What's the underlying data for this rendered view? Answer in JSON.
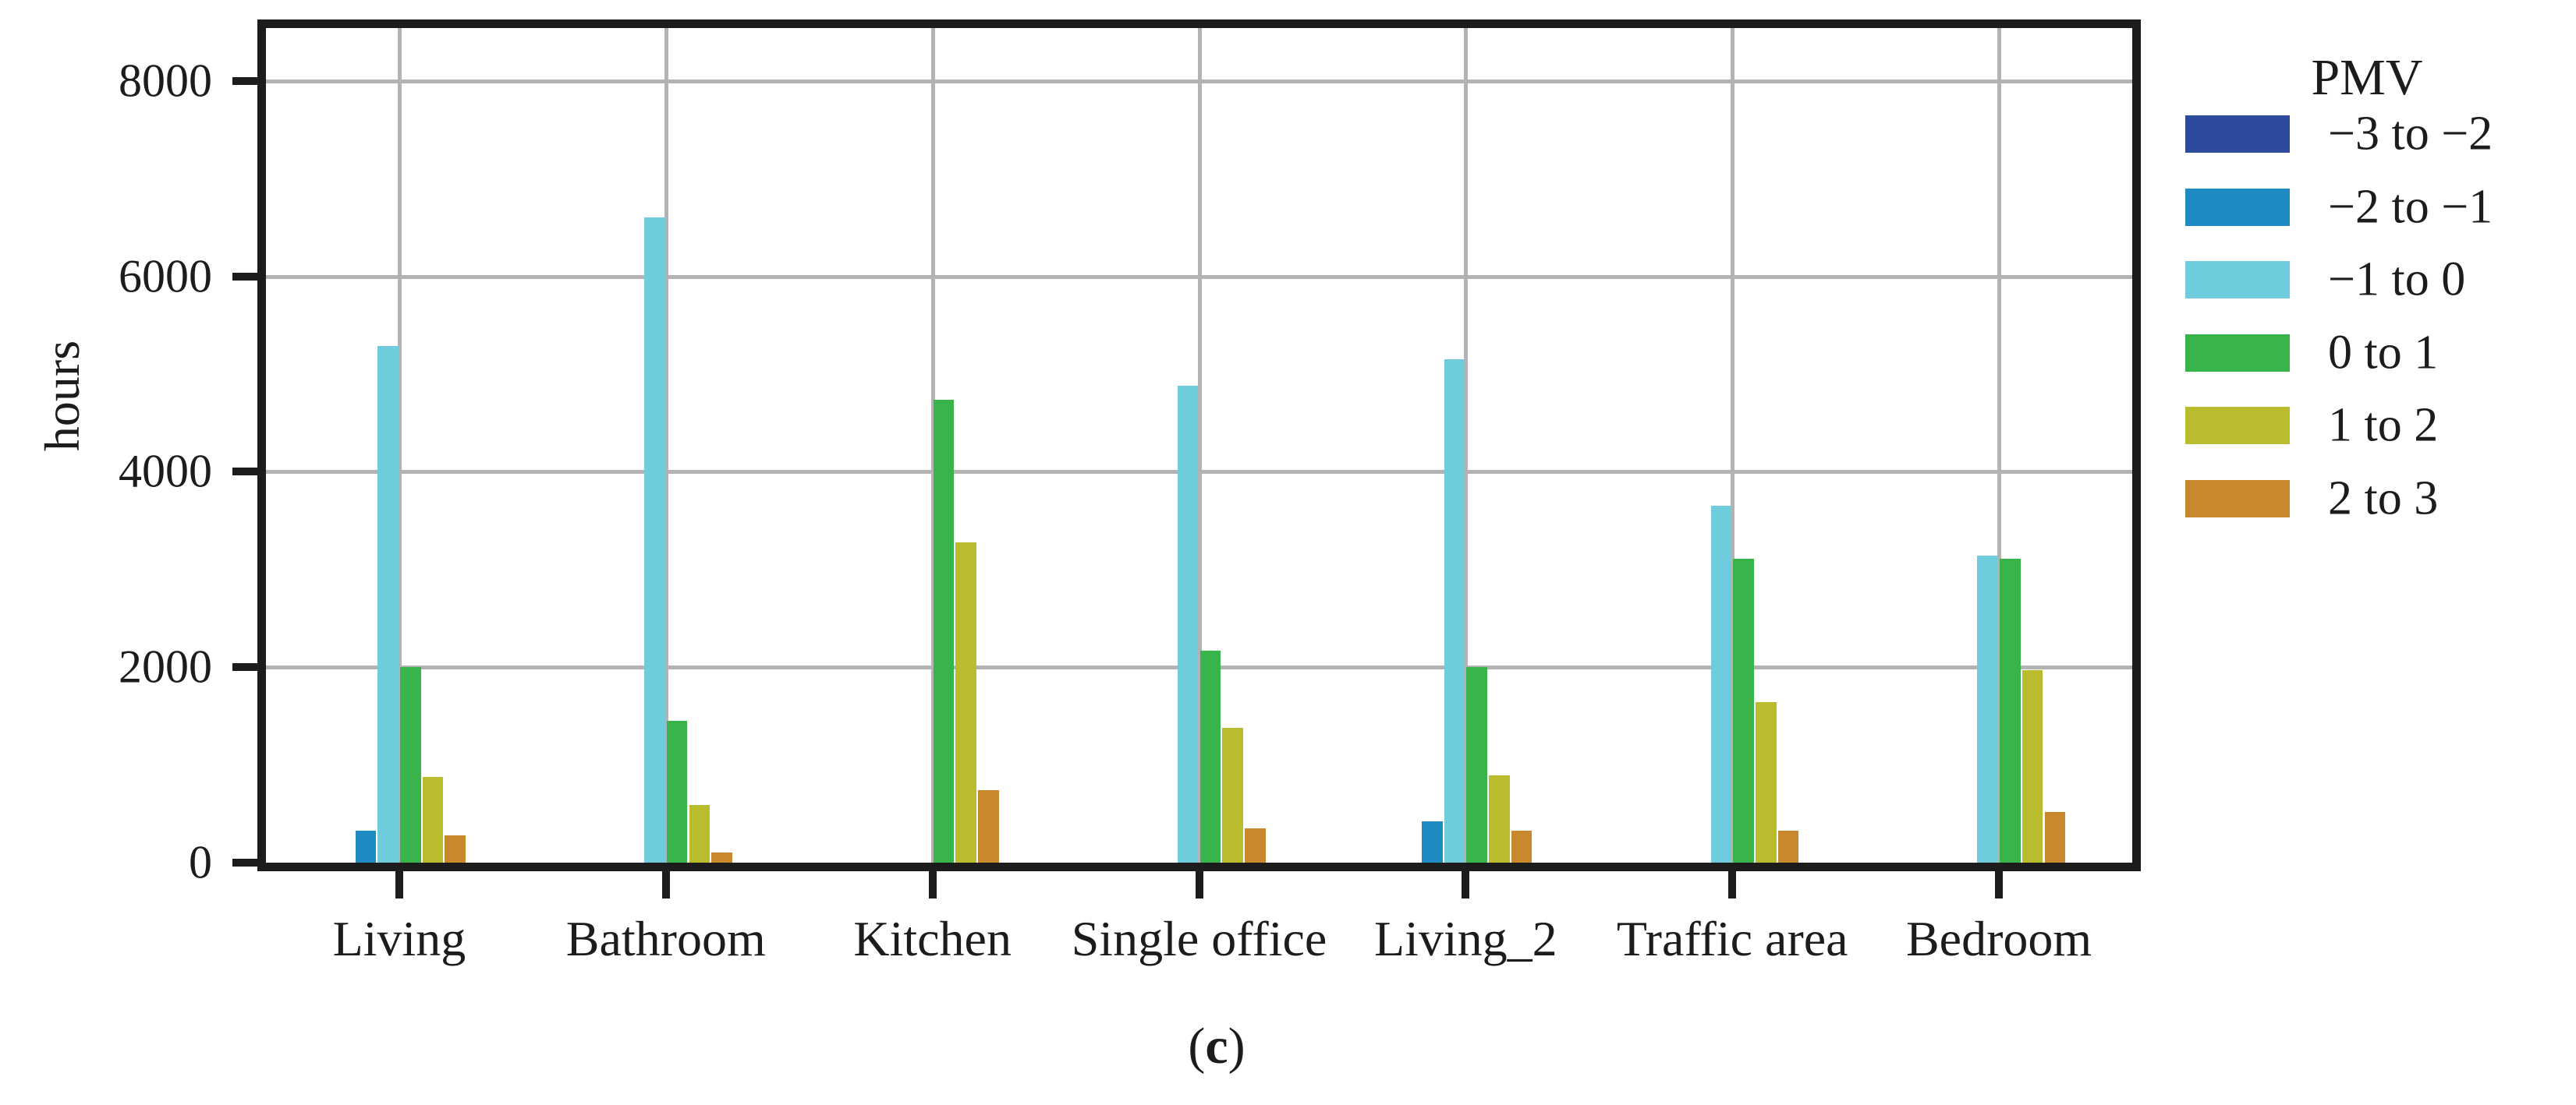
{
  "figure": {
    "y_axis_title": "hours",
    "caption": {
      "open": "(",
      "letter": "c",
      "close": ")"
    }
  },
  "chart_data": {
    "type": "bar",
    "title": "",
    "xlabel": "",
    "ylabel": "hours",
    "categories": [
      "Living",
      "Bathroom",
      "Kitchen",
      "Single office",
      "Living_2",
      "Traffic area",
      "Bedroom"
    ],
    "series": [
      {
        "name": "−3 to −2",
        "color": "#2d4a9c",
        "values": [
          0,
          0,
          0,
          0,
          0,
          0,
          0
        ]
      },
      {
        "name": "−2 to −1",
        "color": "#1e8bc3",
        "values": [
          330,
          0,
          0,
          0,
          420,
          0,
          0
        ]
      },
      {
        "name": "−1 to 0",
        "color": "#6fccdd",
        "values": [
          5290,
          6600,
          0,
          4880,
          5150,
          3650,
          3140
        ]
      },
      {
        "name": "0 to 1",
        "color": "#39b44a",
        "values": [
          2000,
          1450,
          4740,
          2170,
          2000,
          3110,
          3110
        ]
      },
      {
        "name": "1 to 2",
        "color": "#b9bd2d",
        "values": [
          880,
          590,
          3280,
          1380,
          890,
          1640,
          1970
        ]
      },
      {
        "name": "2 to 3",
        "color": "#c9882b",
        "values": [
          280,
          100,
          740,
          350,
          330,
          330,
          520
        ]
      }
    ],
    "yticks": [
      0,
      2000,
      4000,
      6000,
      8000
    ],
    "ylim": [
      0,
      8540
    ],
    "grid": true,
    "legend_title": "PMV",
    "legend_position": "right",
    "caption": "(c)",
    "colors": {
      "axis": "#1c1c1c",
      "gridline": "#b3b3b3",
      "background": "#ffffff"
    }
  }
}
